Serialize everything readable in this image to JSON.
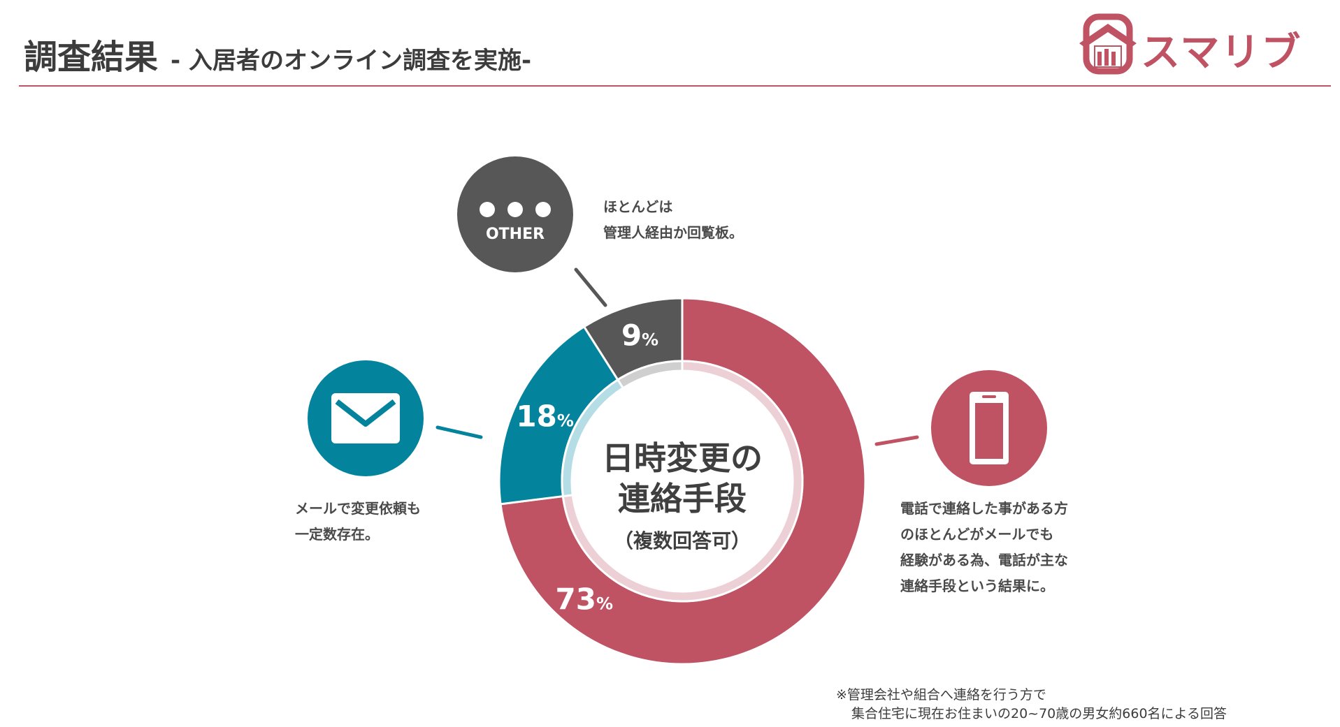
{
  "header": {
    "title": "調査結果",
    "subtitle": "- 入居者のオンライン調査を実施-"
  },
  "logo": {
    "text": "スマリブ"
  },
  "colors": {
    "accent": "#bf5263",
    "accent_light": "#ecd0d5",
    "teal": "#04839c",
    "teal_light": "#b5dde5",
    "gray": "#575757",
    "gray_light": "#cfcfcf"
  },
  "chart_data": {
    "type": "pie",
    "title": "日時変更の連絡手段",
    "subtitle": "（複数回答可）",
    "unit": "%",
    "series": [
      {
        "name": "電話",
        "value": 73,
        "color": "#bf5263",
        "inner_color": "#ecd0d5",
        "icon": "smartphone-icon"
      },
      {
        "name": "メール",
        "value": 18,
        "color": "#04839c",
        "inner_color": "#b5dde5",
        "icon": "envelope-icon"
      },
      {
        "name": "OTHER",
        "value": 9,
        "color": "#575757",
        "inner_color": "#cfcfcf",
        "icon": "more-dots-icon"
      }
    ],
    "center_lines": [
      "日時変更の",
      "連絡手段"
    ]
  },
  "icons": {
    "other_label": "OTHER"
  },
  "notes": {
    "other": [
      "ほとんどは",
      "管理人経由か回覧板。"
    ],
    "mail": [
      "メールで変更依頼も",
      "一定数存在。"
    ],
    "phone": [
      "電話で連絡した事がある方",
      "のほとんどがメールでも",
      "経験がある為、電話が主な",
      "連絡手段という結果に。"
    ]
  },
  "footnote": {
    "line1": "※管理会社や組合へ連絡を行う方で",
    "line2": "集合住宅に現在お住まいの20~70歳の男女約660名による回答"
  }
}
